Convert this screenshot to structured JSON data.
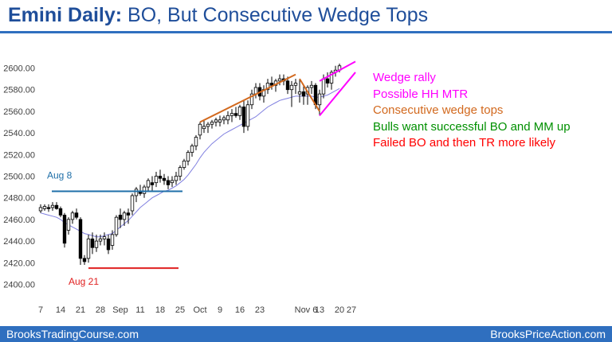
{
  "header": {
    "title_bold": "Emini Daily:",
    "title_rest": " BO, But Consecutive Wedge Tops"
  },
  "footer": {
    "left": "BrooksTradingCourse.com",
    "right": "BrooksPriceAction.com"
  },
  "colors": {
    "title": "#1f4e9a",
    "bar_band": "#2f6fbf",
    "moving_average": "#8080e0",
    "aug8_line": "#1f6fa8",
    "aug21_line": "#e02020",
    "wedge_trendline": "#d2691e",
    "wedge_rally": "#ff00ff"
  },
  "chart_data": {
    "type": "candlestick",
    "title": "Emini Daily: BO, But Consecutive Wedge Tops",
    "ylim": [
      2392,
      2612
    ],
    "y_ticks": [
      "2400.00",
      "2420.00",
      "2440.00",
      "2460.00",
      "2480.00",
      "2500.00",
      "2520.00",
      "2540.00",
      "2560.00",
      "2580.00",
      "2600.00"
    ],
    "x_ticks": [
      {
        "label": "7",
        "bar": 0
      },
      {
        "label": "14",
        "bar": 5
      },
      {
        "label": "21",
        "bar": 10
      },
      {
        "label": "28",
        "bar": 15
      },
      {
        "label": "Sep",
        "bar": 20
      },
      {
        "label": "11",
        "bar": 25
      },
      {
        "label": "18",
        "bar": 30
      },
      {
        "label": "25",
        "bar": 35
      },
      {
        "label": "Oct",
        "bar": 40
      },
      {
        "label": "9",
        "bar": 45
      },
      {
        "label": "16",
        "bar": 50
      },
      {
        "label": "23",
        "bar": 55
      },
      {
        "label": "Nov 6",
        "bar": 65
      },
      {
        "label": "13",
        "bar": 70
      },
      {
        "label": "20",
        "bar": 75
      },
      {
        "label": "27",
        "bar": 78
      }
    ],
    "bars_ohlc": [
      [
        2468,
        2474,
        2466,
        2471
      ],
      [
        2470,
        2474,
        2468,
        2472
      ],
      [
        2471,
        2474,
        2467,
        2470
      ],
      [
        2471,
        2476,
        2468,
        2473
      ],
      [
        2473,
        2476,
        2469,
        2470
      ],
      [
        2470,
        2472,
        2462,
        2464
      ],
      [
        2464,
        2466,
        2434,
        2438
      ],
      [
        2450,
        2462,
        2446,
        2460
      ],
      [
        2460,
        2468,
        2456,
        2466
      ],
      [
        2466,
        2470,
        2460,
        2462
      ],
      [
        2460,
        2462,
        2418,
        2424
      ],
      [
        2424,
        2427,
        2418,
        2421
      ],
      [
        2424,
        2446,
        2420,
        2442
      ],
      [
        2442,
        2448,
        2428,
        2434
      ],
      [
        2434,
        2446,
        2430,
        2440
      ],
      [
        2440,
        2446,
        2436,
        2442
      ],
      [
        2442,
        2448,
        2436,
        2444
      ],
      [
        2442,
        2446,
        2428,
        2432
      ],
      [
        2436,
        2450,
        2432,
        2446
      ],
      [
        2446,
        2464,
        2444,
        2462
      ],
      [
        2464,
        2470,
        2452,
        2460
      ],
      [
        2460,
        2468,
        2454,
        2466
      ],
      [
        2466,
        2470,
        2456,
        2464
      ],
      [
        2468,
        2484,
        2464,
        2482
      ],
      [
        2482,
        2490,
        2476,
        2488
      ],
      [
        2486,
        2492,
        2482,
        2484
      ],
      [
        2484,
        2492,
        2480,
        2490
      ],
      [
        2490,
        2498,
        2486,
        2496
      ],
      [
        2494,
        2500,
        2486,
        2492
      ],
      [
        2494,
        2504,
        2490,
        2500
      ],
      [
        2500,
        2506,
        2494,
        2498
      ],
      [
        2498,
        2502,
        2492,
        2496
      ],
      [
        2496,
        2500,
        2488,
        2492
      ],
      [
        2494,
        2500,
        2490,
        2496
      ],
      [
        2496,
        2504,
        2492,
        2500
      ],
      [
        2500,
        2510,
        2496,
        2508
      ],
      [
        2508,
        2516,
        2506,
        2514
      ],
      [
        2514,
        2524,
        2510,
        2522
      ],
      [
        2522,
        2530,
        2518,
        2528
      ],
      [
        2528,
        2538,
        2524,
        2536
      ],
      [
        2538,
        2550,
        2534,
        2548
      ],
      [
        2544,
        2552,
        2540,
        2546
      ],
      [
        2546,
        2550,
        2540,
        2548
      ],
      [
        2548,
        2552,
        2544,
        2550
      ],
      [
        2550,
        2554,
        2546,
        2552
      ],
      [
        2550,
        2556,
        2546,
        2552
      ],
      [
        2552,
        2556,
        2548,
        2554
      ],
      [
        2552,
        2560,
        2548,
        2556
      ],
      [
        2556,
        2562,
        2550,
        2558
      ],
      [
        2558,
        2564,
        2554,
        2556
      ],
      [
        2556,
        2566,
        2552,
        2564
      ],
      [
        2564,
        2570,
        2540,
        2546
      ],
      [
        2546,
        2570,
        2542,
        2566
      ],
      [
        2566,
        2580,
        2562,
        2576
      ],
      [
        2576,
        2586,
        2572,
        2582
      ],
      [
        2582,
        2586,
        2570,
        2574
      ],
      [
        2574,
        2584,
        2568,
        2580
      ],
      [
        2580,
        2590,
        2576,
        2586
      ],
      [
        2586,
        2592,
        2580,
        2584
      ],
      [
        2584,
        2590,
        2578,
        2588
      ],
      [
        2588,
        2594,
        2584,
        2590
      ],
      [
        2590,
        2594,
        2584,
        2588
      ],
      [
        2588,
        2592,
        2576,
        2580
      ],
      [
        2580,
        2588,
        2564,
        2584
      ],
      [
        2584,
        2590,
        2576,
        2586
      ],
      [
        2576,
        2590,
        2568,
        2578
      ],
      [
        2578,
        2584,
        2566,
        2574
      ],
      [
        2576,
        2584,
        2566,
        2582
      ],
      [
        2582,
        2588,
        2576,
        2584
      ],
      [
        2584,
        2586,
        2562,
        2566
      ],
      [
        2566,
        2580,
        2556,
        2576
      ],
      [
        2576,
        2594,
        2572,
        2590
      ],
      [
        2590,
        2596,
        2582,
        2586
      ],
      [
        2586,
        2598,
        2580,
        2596
      ],
      [
        2596,
        2602,
        2592,
        2598
      ],
      [
        2598,
        2604,
        2596,
        2602
      ]
    ],
    "moving_average": [
      2466,
      2465,
      2464,
      2463,
      2462,
      2460,
      2457,
      2455,
      2453,
      2451,
      2449,
      2447,
      2446,
      2445,
      2444,
      2444,
      2445,
      2446,
      2447,
      2450,
      2453,
      2456,
      2459,
      2463,
      2467,
      2471,
      2474,
      2477,
      2480,
      2482,
      2484,
      2486,
      2487,
      2489,
      2491,
      2494,
      2497,
      2501,
      2506,
      2511,
      2517,
      2522,
      2526,
      2530,
      2533,
      2536,
      2539,
      2541,
      2543,
      2545,
      2547,
      2549,
      2551,
      2553,
      2555,
      2558,
      2561,
      2564,
      2566,
      2568,
      2570,
      2571,
      2572,
      2573,
      2574,
      2574,
      2574,
      2574,
      2574,
      2573,
      2573,
      2574,
      2575,
      2577,
      2579,
      2581
    ],
    "annotations": [
      {
        "text": "Aug 8",
        "kind": "horizontal-line",
        "bars": [
          0,
          36
        ],
        "y": 2486
      },
      {
        "text": "Aug 21",
        "kind": "horizontal-line",
        "bars": [
          10,
          35
        ],
        "y": 2415
      },
      {
        "text": "",
        "kind": "trendline",
        "points": [
          [
            40,
            2550
          ],
          [
            64,
            2594
          ]
        ]
      },
      {
        "text": "",
        "kind": "trendline",
        "points": [
          [
            65,
            2590
          ],
          [
            70,
            2560
          ]
        ]
      },
      {
        "text": "",
        "kind": "wedge",
        "points": [
          [
            70,
            2588
          ],
          [
            79,
            2606
          ],
          [
            70,
            2556
          ],
          [
            79,
            2596
          ]
        ]
      }
    ],
    "notes": [
      {
        "text": "Wedge rally",
        "color": "#ff00ff"
      },
      {
        "text": "Possible HH MTR",
        "color": "#ff00ff"
      },
      {
        "text": "Consecutive wedge tops",
        "color": "#d2691e"
      },
      {
        "text": "Bulls want successful BO and MM up",
        "color": "#009000"
      },
      {
        "text": "Failed BO and then TR more likely",
        "color": "#ff0000"
      }
    ]
  }
}
